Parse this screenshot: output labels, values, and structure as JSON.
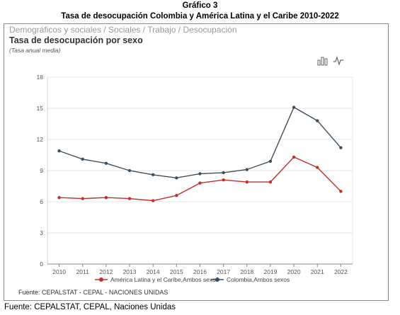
{
  "document": {
    "heading": "Gráfico 3",
    "subheading": "Tasa de desocupación Colombia y América Latina y el Caribe 2010-2022",
    "footer_source": "Fuente: CEPALSTAT, CEPAL, Naciones Unidas"
  },
  "panel": {
    "breadcrumb": "Demográficos y sociales / Sociales / Trabajo / Desocupación",
    "source": "Fuente: CEPALSTAT - CEPAL - NACIONES UNIDAS"
  },
  "chart_data": {
    "type": "line",
    "title": "Tasa de desocupación por sexo",
    "subtitle": "(Tasa anual media)",
    "x": [
      "2010",
      "2011",
      "2012",
      "2013",
      "2014",
      "2015",
      "2016",
      "2017",
      "2018",
      "2019",
      "2020",
      "2021",
      "2022"
    ],
    "ylim": [
      0,
      18
    ],
    "yticks": [
      0,
      3,
      6,
      9,
      12,
      15,
      18
    ],
    "grid": true,
    "legend_position": "bottom",
    "series": [
      {
        "name": "América Latina y el Caribe,Ambos sexos",
        "color": "#c0302b",
        "values": [
          6.4,
          6.3,
          6.4,
          6.3,
          6.1,
          6.6,
          7.8,
          8.1,
          7.9,
          7.9,
          10.3,
          9.3,
          7.0
        ]
      },
      {
        "name": "Colombia,Ambos sexos",
        "color": "#3d4f5e",
        "values": [
          10.9,
          10.1,
          9.7,
          9.0,
          8.6,
          8.3,
          8.7,
          8.8,
          9.1,
          9.9,
          15.1,
          13.8,
          11.2
        ]
      }
    ]
  },
  "icons": [
    "bar-chart-icon",
    "line-chart-icon"
  ]
}
